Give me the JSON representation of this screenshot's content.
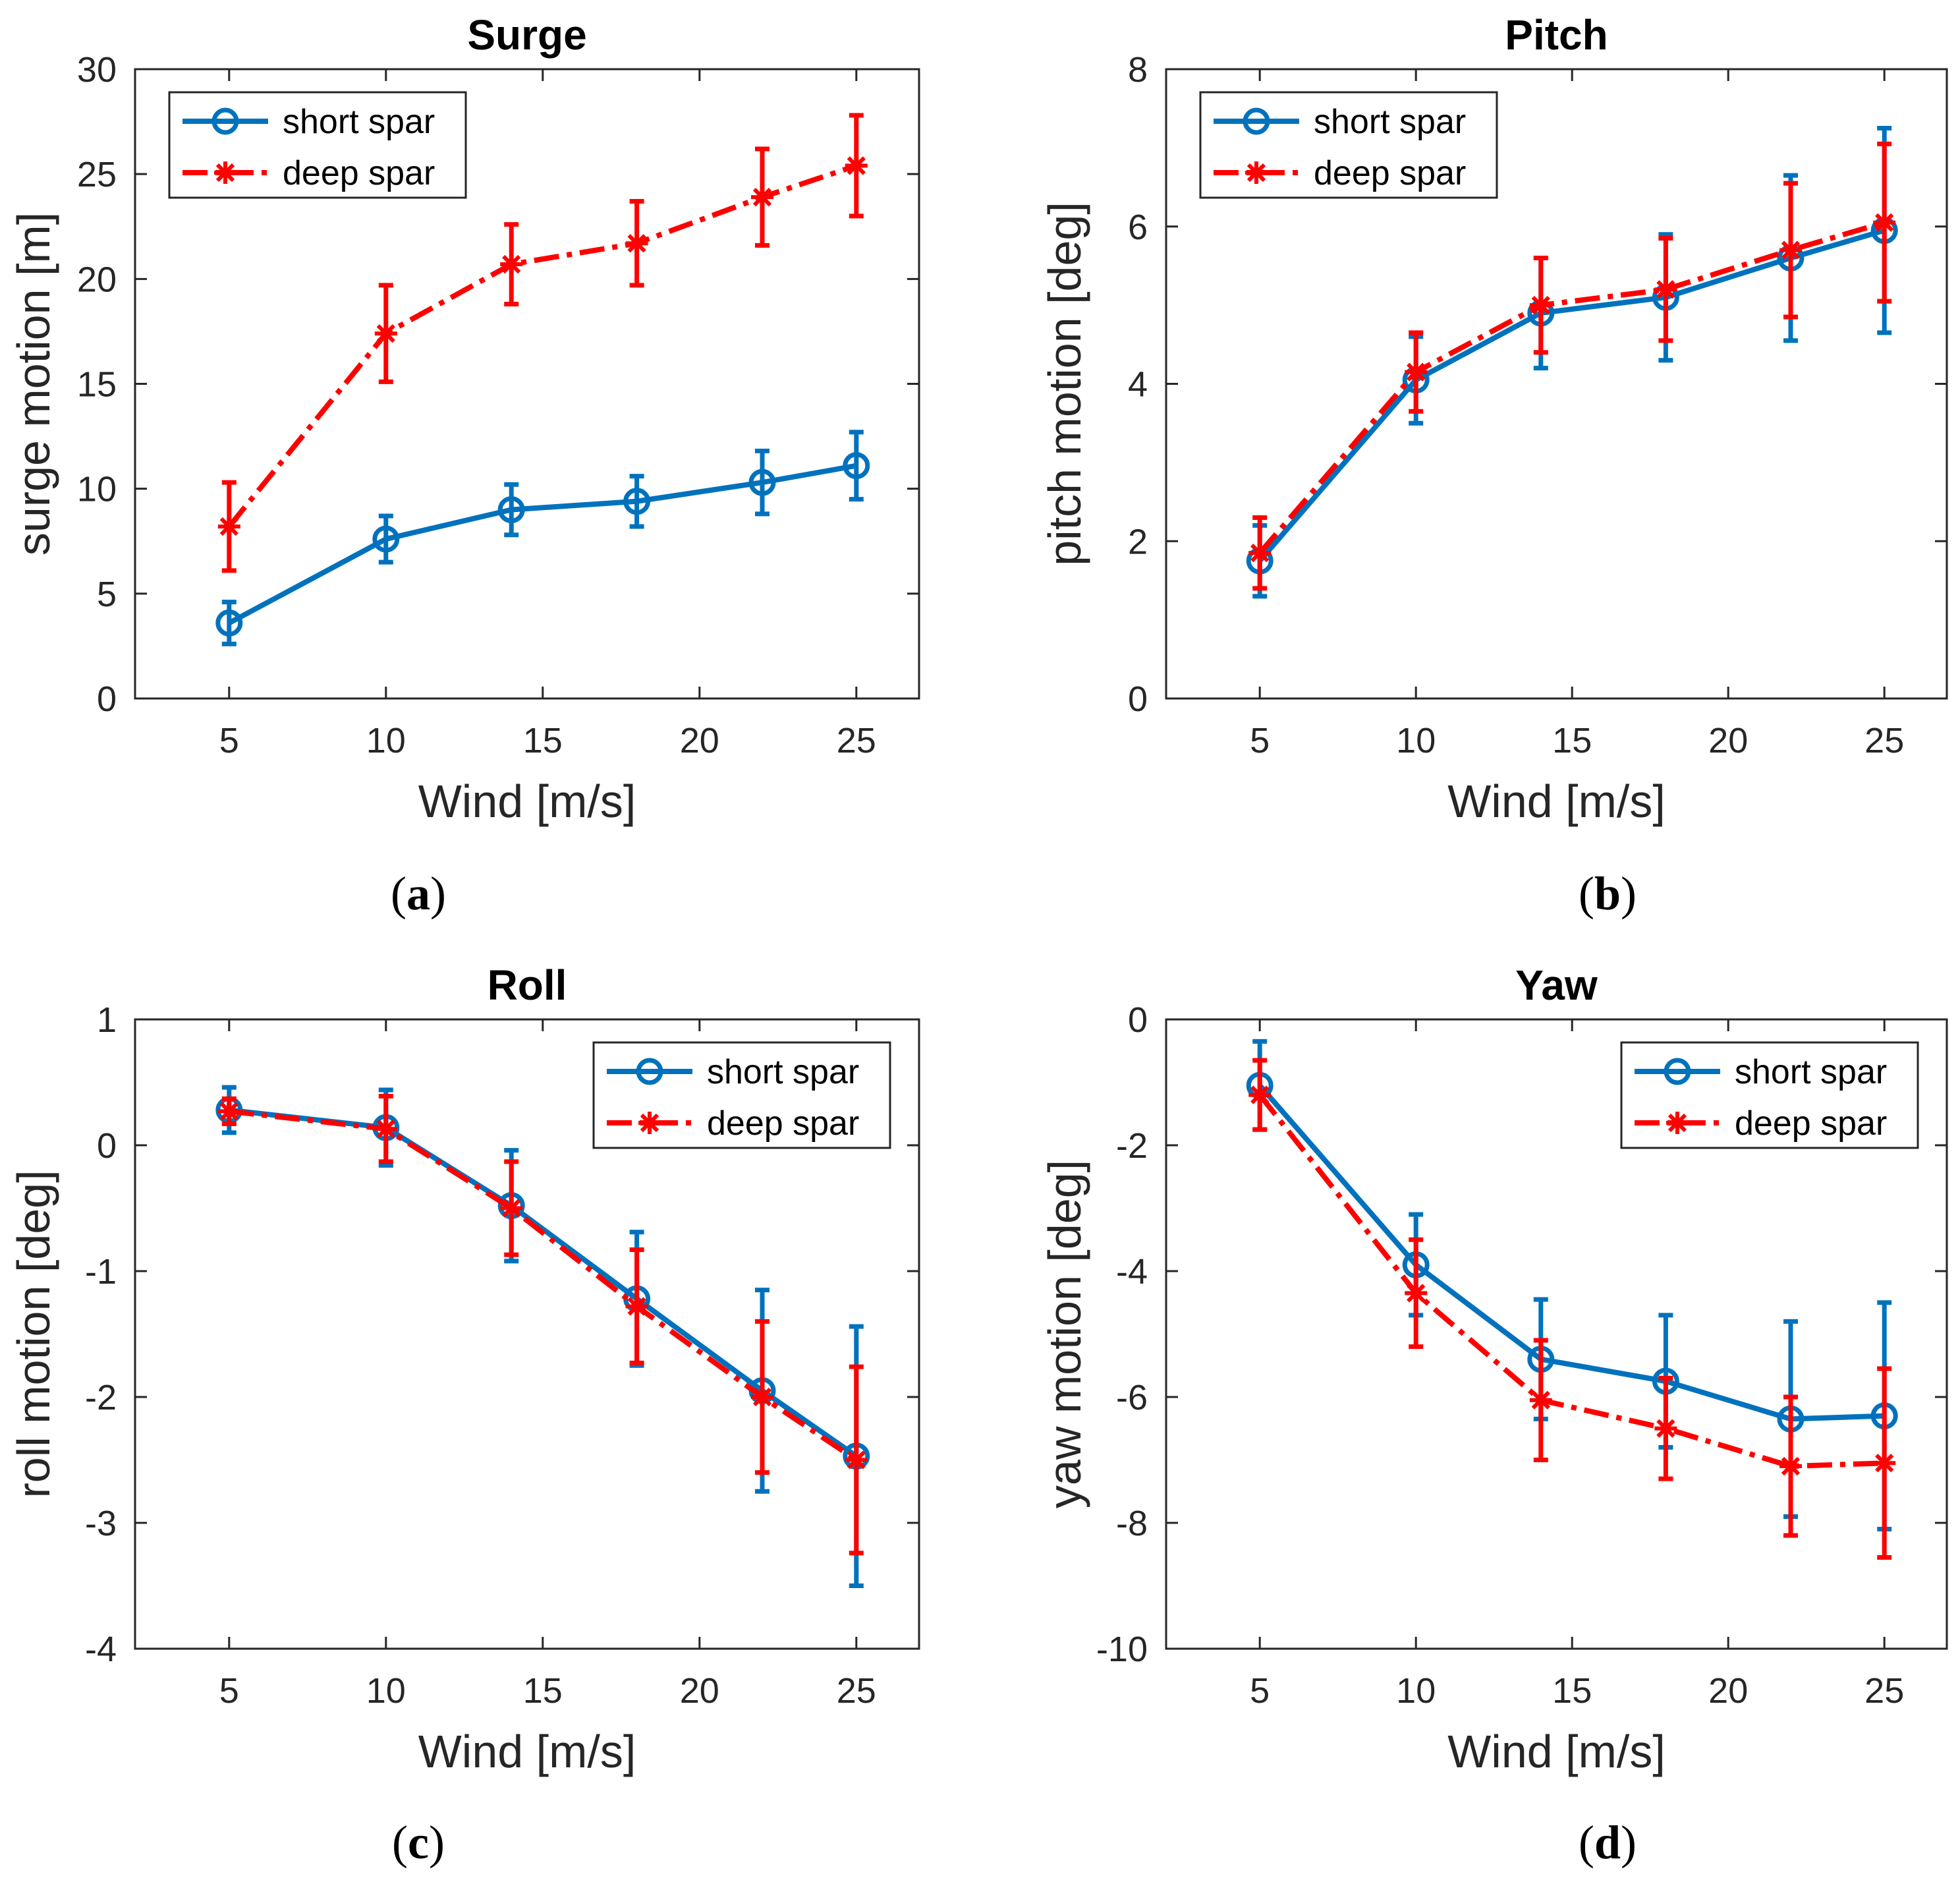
{
  "figure_labels": [
    "(a)",
    "(b)",
    "(c)",
    "(d)"
  ],
  "chart_data": [
    {
      "type": "line",
      "title": "Surge",
      "xlabel": "Wind [m/s]",
      "ylabel": "surge motion [m]",
      "xlim": [
        2,
        27
      ],
      "ylim": [
        0,
        30
      ],
      "xticks": [
        5,
        10,
        15,
        20,
        25
      ],
      "yticks": [
        0,
        5,
        10,
        15,
        20,
        25,
        30
      ],
      "legend_position": "top-left",
      "x": [
        5,
        10,
        14,
        18,
        22,
        25
      ],
      "series": [
        {
          "name": "short spar",
          "color": "#0072BD",
          "marker": "circle",
          "dash": "solid",
          "values": [
            3.6,
            7.6,
            9.0,
            9.4,
            10.3,
            11.1
          ],
          "errors": [
            1.0,
            1.1,
            1.2,
            1.2,
            1.5,
            1.6
          ]
        },
        {
          "name": "deep spar",
          "color": "#FF0000",
          "marker": "star",
          "dash": "dashdot",
          "values": [
            8.2,
            17.4,
            20.7,
            21.7,
            23.9,
            25.4
          ],
          "errors": [
            2.1,
            2.3,
            1.9,
            2.0,
            2.3,
            2.4
          ]
        }
      ]
    },
    {
      "type": "line",
      "title": "Pitch",
      "xlabel": "Wind [m/s]",
      "ylabel": "pitch motion [deg]",
      "xlim": [
        2,
        27
      ],
      "ylim": [
        0,
        8
      ],
      "xticks": [
        5,
        10,
        15,
        20,
        25
      ],
      "yticks": [
        0,
        2,
        4,
        6,
        8
      ],
      "legend_position": "top-left",
      "x": [
        5,
        10,
        14,
        18,
        22,
        25
      ],
      "series": [
        {
          "name": "short spar",
          "color": "#0072BD",
          "marker": "circle",
          "dash": "solid",
          "values": [
            1.75,
            4.05,
            4.9,
            5.1,
            5.6,
            5.95
          ],
          "errors": [
            0.45,
            0.55,
            0.7,
            0.8,
            1.05,
            1.3
          ]
        },
        {
          "name": "deep spar",
          "color": "#FF0000",
          "marker": "star",
          "dash": "dashdot",
          "values": [
            1.85,
            4.15,
            5.0,
            5.2,
            5.7,
            6.05
          ],
          "errors": [
            0.45,
            0.5,
            0.6,
            0.65,
            0.85,
            1.0
          ]
        }
      ]
    },
    {
      "type": "line",
      "title": "Roll",
      "xlabel": "Wind [m/s]",
      "ylabel": "roll motion [deg]",
      "xlim": [
        2,
        27
      ],
      "ylim": [
        -4,
        1
      ],
      "xticks": [
        5,
        10,
        15,
        20,
        25
      ],
      "yticks": [
        -4,
        -3,
        -2,
        -1,
        0,
        1
      ],
      "legend_position": "top-right",
      "x": [
        5,
        10,
        14,
        18,
        22,
        25
      ],
      "series": [
        {
          "name": "short spar",
          "color": "#0072BD",
          "marker": "circle",
          "dash": "solid",
          "values": [
            0.28,
            0.14,
            -0.48,
            -1.22,
            -1.95,
            -2.47
          ],
          "errors": [
            0.18,
            0.3,
            0.44,
            0.53,
            0.8,
            1.03
          ]
        },
        {
          "name": "deep spar",
          "color": "#FF0000",
          "marker": "star",
          "dash": "dashdot",
          "values": [
            0.27,
            0.13,
            -0.5,
            -1.28,
            -2.0,
            -2.5
          ],
          "errors": [
            0.1,
            0.26,
            0.37,
            0.45,
            0.6,
            0.74
          ]
        }
      ]
    },
    {
      "type": "line",
      "title": "Yaw",
      "xlabel": "Wind [m/s]",
      "ylabel": "yaw motion [deg]",
      "xlim": [
        2,
        27
      ],
      "ylim": [
        -10,
        0
      ],
      "xticks": [
        5,
        10,
        15,
        20,
        25
      ],
      "yticks": [
        -10,
        -8,
        -6,
        -4,
        -2,
        0
      ],
      "legend_position": "top-right",
      "x": [
        5,
        10,
        14,
        18,
        22,
        25
      ],
      "series": [
        {
          "name": "short spar",
          "color": "#0072BD",
          "marker": "circle",
          "dash": "solid",
          "values": [
            -1.05,
            -3.9,
            -5.4,
            -5.75,
            -6.35,
            -6.3
          ],
          "errors": [
            0.7,
            0.8,
            0.95,
            1.05,
            1.55,
            1.8
          ]
        },
        {
          "name": "deep spar",
          "color": "#FF0000",
          "marker": "star",
          "dash": "dashdot",
          "values": [
            -1.2,
            -4.35,
            -6.05,
            -6.5,
            -7.1,
            -7.05
          ],
          "errors": [
            0.55,
            0.85,
            0.95,
            0.8,
            1.1,
            1.5
          ]
        }
      ]
    }
  ]
}
